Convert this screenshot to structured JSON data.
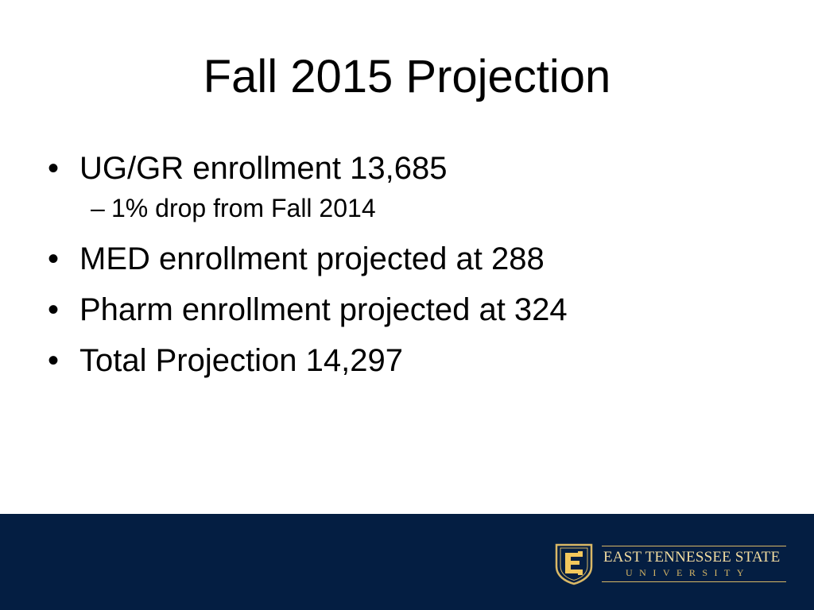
{
  "slide": {
    "title": "Fall 2015 Projection",
    "bullet_symbol": "•",
    "sub_bullet_symbol": "–",
    "bullets": [
      {
        "text": "UG/GR enrollment 13,685",
        "sub": [
          "1% drop from Fall 2014"
        ]
      },
      {
        "text": "MED enrollment projected at 288"
      },
      {
        "text": "Pharm enrollment projected at 324"
      },
      {
        "text": "Total Projection 14,297"
      }
    ]
  },
  "footer": {
    "background_color": "#041e42",
    "logo": {
      "icon": "etsu-shield-e-icon",
      "line1": "EAST TENNESSEE STATE",
      "line2": "UNIVERSITY",
      "gold_color": "#d9b866"
    }
  }
}
